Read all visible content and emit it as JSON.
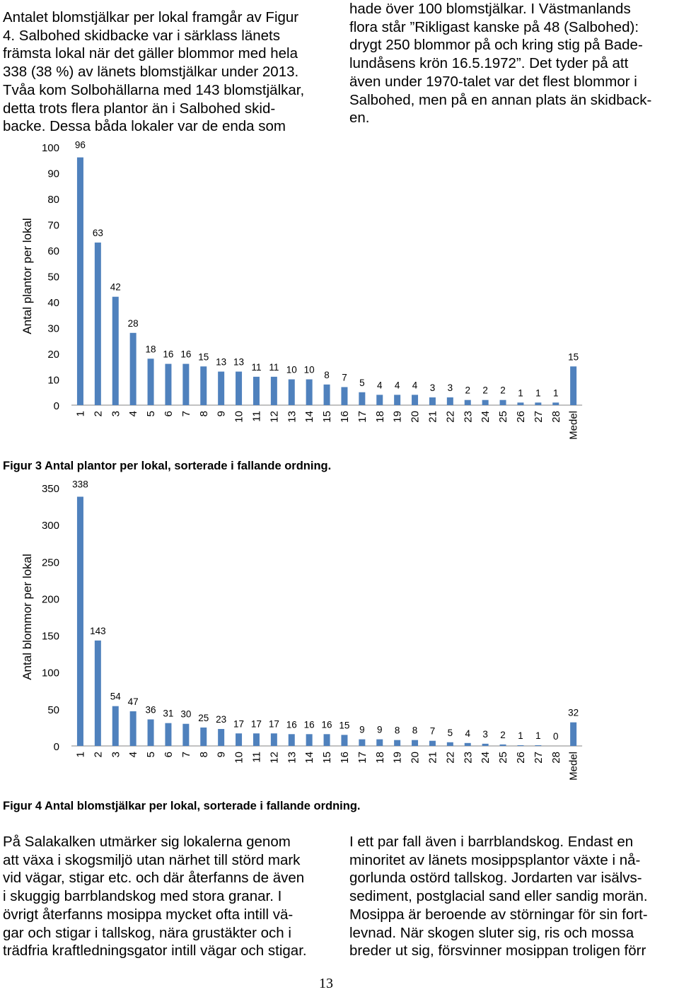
{
  "text": {
    "top_left": [
      "Antalet blomstjälkar per lokal framgår av Figur",
      "4. Salbohed skidbacke var i särklass länets",
      "främsta lokal när det gäller blommor med hela",
      "338 (38 %) av länets blomstjälkar under 2013.",
      "Tvåa kom Solbohällarna med 143 blomstjälkar,",
      "detta trots flera plantor än i Salbohed skid-",
      "backe. Dessa båda lokaler var de enda som"
    ],
    "top_right": [
      "hade över 100 blomstjälkar. I Västmanlands",
      "flora står ”Rikligast kanske på 48 (Salbohed):",
      "drygt 250 blommor på och kring stig på Bade-",
      "lundåsens krön 16.5.1972”. Det tyder på att",
      "även under 1970-talet var det flest blommor i",
      "Salbohed, men på en annan plats än skidback-",
      "en."
    ],
    "bottom_left": [
      "På Salakalken utmärker sig lokalerna genom",
      "att växa i skogsmiljö utan närhet till störd mark",
      "vid vägar, stigar etc. och där återfanns de även",
      "i skuggig barrblandskog med stora granar. I",
      "övrigt återfanns mosippa mycket ofta intill vä-",
      "gar och stigar i tallskog, nära grustäkter och i",
      "trädfria kraftledningsgator intill vägar och stigar."
    ],
    "bottom_right": [
      "I ett par fall även i barrblandskog. Endast en",
      "minoritet av länets mosippsplantor växte i nå-",
      "gorlunda ostörd tallskog. Jordarten var isälvs-",
      "sediment, postglacial sand eller sandig morän.",
      "Mosippa är beroende av störningar för sin fort-",
      "levnad. När skogen sluter sig, ris och mossa",
      "breder ut sig, försvinner mosippan troligen förr"
    ]
  },
  "captions": {
    "figure3": "Figur 3 Antal plantor per lokal, sorterade i fallande ordning.",
    "figure4": "Figur 4 Antal blomstjälkar per lokal, sorterade i fallande ordning."
  },
  "page_number": "13",
  "colors": {
    "bar": "#4f81bd",
    "axis": "#868686"
  },
  "chart_data": [
    {
      "type": "bar",
      "title": "",
      "xlabel": "",
      "ylabel": "Antal plantor per lokal",
      "ylim": [
        0,
        100
      ],
      "yticks": [
        0,
        10,
        20,
        30,
        40,
        50,
        60,
        70,
        80,
        90,
        100
      ],
      "grid": false,
      "categories": [
        "1",
        "2",
        "3",
        "4",
        "5",
        "6",
        "7",
        "8",
        "9",
        "10",
        "11",
        "12",
        "13",
        "14",
        "15",
        "16",
        "17",
        "18",
        "19",
        "20",
        "21",
        "22",
        "23",
        "24",
        "25",
        "26",
        "27",
        "28",
        "Medel"
      ],
      "values": [
        96,
        63,
        42,
        28,
        18,
        16,
        16,
        15,
        13,
        13,
        11,
        11,
        10,
        10,
        8,
        7,
        5,
        4,
        4,
        4,
        3,
        3,
        2,
        2,
        2,
        1,
        1,
        1,
        15
      ],
      "data_labels": [
        "96",
        "63",
        "42",
        "28",
        "18",
        "16",
        "16",
        "15",
        "13",
        "13",
        "11",
        "11",
        "10",
        "10",
        "8",
        "7",
        "5",
        "4",
        "4",
        "4",
        "3",
        "3",
        "2",
        "2",
        "2",
        "1",
        "1",
        "1",
        "15"
      ]
    },
    {
      "type": "bar",
      "title": "",
      "xlabel": "",
      "ylabel": "Antal blommor per lokal",
      "ylim": [
        0,
        350
      ],
      "yticks": [
        0,
        50,
        100,
        150,
        200,
        250,
        300,
        350
      ],
      "grid": false,
      "categories": [
        "1",
        "2",
        "3",
        "4",
        "5",
        "6",
        "7",
        "8",
        "9",
        "10",
        "11",
        "12",
        "13",
        "14",
        "15",
        "16",
        "17",
        "18",
        "19",
        "20",
        "21",
        "22",
        "23",
        "24",
        "25",
        "26",
        "27",
        "28",
        "Medel"
      ],
      "values": [
        338,
        143,
        54,
        47,
        36,
        31,
        30,
        25,
        23,
        17,
        17,
        17,
        16,
        16,
        16,
        15,
        9,
        9,
        8,
        8,
        7,
        5,
        4,
        3,
        2,
        1,
        1,
        0,
        32
      ],
      "data_labels": [
        "338",
        "143",
        "54",
        "47",
        "36",
        "31",
        "30",
        "25",
        "23",
        "17",
        "17",
        "17",
        "16",
        "16",
        "16",
        "15",
        "9",
        "9",
        "8",
        "8",
        "7",
        "5",
        "4",
        "3",
        "2",
        "1",
        "1",
        "0",
        "32"
      ]
    }
  ]
}
